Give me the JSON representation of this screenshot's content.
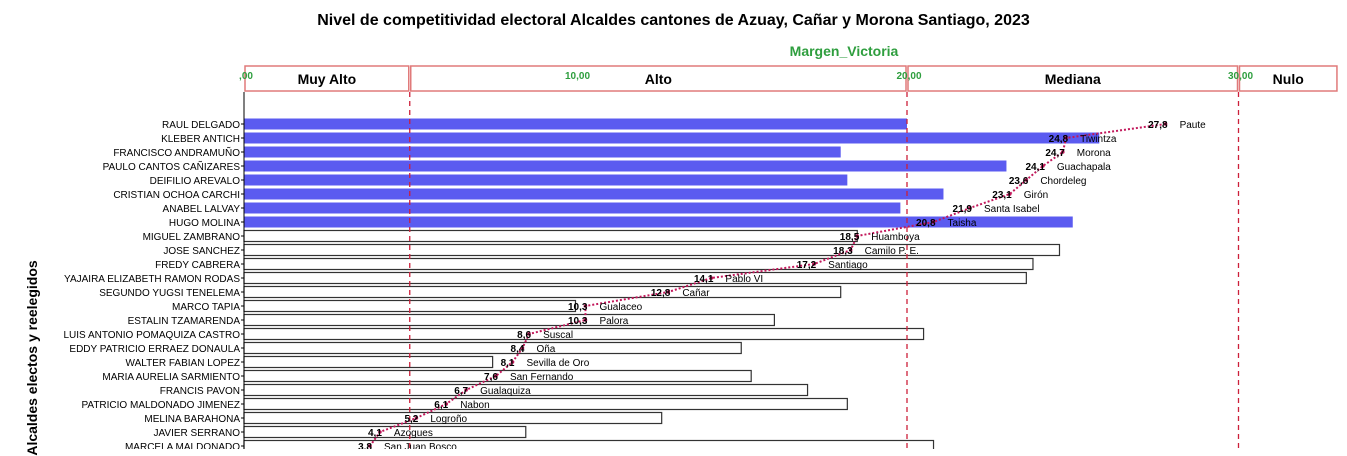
{
  "chart_data": {
    "type": "bar",
    "title": "Nivel de competitividad electoral Alcaldes cantones de Azuay, Cañar y Morona Santiago, 2023",
    "xlabel": "Margen_Victoria",
    "ylabel": "Alcaldes electos y reelegidos",
    "xlim": [
      0,
      33
    ],
    "x_ticks": [
      ",00",
      "10,00",
      "20,00",
      "30,00"
    ],
    "bands": [
      {
        "label": "Muy Alto"
      },
      {
        "label": "Alto"
      },
      {
        "label": "Mediana"
      },
      {
        "label": "Nulo"
      }
    ],
    "band_limits": [
      5,
      20,
      30
    ],
    "categories": [
      "RAUL DELGADO",
      "KLEBER ANTICH",
      "FRANCISCO ANDRAMUÑO",
      "PAULO CANTOS CAÑIZARES",
      "DEIFILIO AREVALO",
      "CRISTIAN OCHOA CARCHI",
      "ANABEL LALVAY",
      "HUGO MOLINA",
      "MIGUEL ZAMBRANO",
      "JOSE SANCHEZ",
      "FREDY CABRERA",
      "YAJAIRA ELIZABETH RAMON RODAS",
      "SEGUNDO YUGSI TENELEMA",
      "MARCO TAPIA",
      "ESTALIN TZAMARENDA",
      "LUIS ANTONIO POMAQUIZA CASTRO",
      "EDDY PATRICIO ERRAEZ DONAULA",
      "WALTER FABIAN LOPEZ",
      "MARIA AURELIA SARMIENTO",
      "FRANCIS PAVON",
      "PATRICIO MALDONADO JIMENEZ",
      "MELINA BARAHONA",
      "JAVIER SERRANO",
      "MARCELA MALDONADO"
    ],
    "bar_values": [
      20.0,
      25.8,
      18.0,
      23.0,
      18.2,
      21.1,
      19.8,
      25.0,
      18.5,
      24.6,
      23.8,
      23.6,
      18.0,
      10.0,
      16.0,
      20.5,
      15.0,
      7.5,
      15.3,
      17.0,
      18.2,
      12.6,
      8.5,
      20.8
    ],
    "bar_colors": [
      "#5b5bf0",
      "#5b5bf0",
      "#5b5bf0",
      "#5b5bf0",
      "#5b5bf0",
      "#5b5bf0",
      "#5b5bf0",
      "#5b5bf0",
      "#ffffff",
      "#ffffff",
      "#ffffff",
      "#ffffff",
      "#ffffff",
      "#ffffff",
      "#ffffff",
      "#ffffff",
      "#ffffff",
      "#ffffff",
      "#ffffff",
      "#ffffff",
      "#ffffff",
      "#ffffff",
      "#ffffff",
      "#ffffff"
    ],
    "points": [
      {
        "value": 27.8,
        "label": "27,8",
        "canton": "Paute"
      },
      {
        "value": 24.8,
        "label": "24,8",
        "canton": "Tiwintza"
      },
      {
        "value": 24.7,
        "label": "24,7",
        "canton": "Morona"
      },
      {
        "value": 24.1,
        "label": "24,1",
        "canton": "Guachapala"
      },
      {
        "value": 23.6,
        "label": "23,6",
        "canton": "Chordeleg"
      },
      {
        "value": 23.1,
        "label": "23,1",
        "canton": "Girón"
      },
      {
        "value": 21.9,
        "label": "21,9",
        "canton": "Santa Isabel"
      },
      {
        "value": 20.8,
        "label": "20,8",
        "canton": "Taisha"
      },
      {
        "value": 18.5,
        "label": "18,5",
        "canton": "Huamboya"
      },
      {
        "value": 18.3,
        "label": "18,3",
        "canton": "Camilo P. E."
      },
      {
        "value": 17.2,
        "label": "17,2",
        "canton": "Santiago"
      },
      {
        "value": 14.1,
        "label": "14,1",
        "canton": "Pablo VI"
      },
      {
        "value": 12.8,
        "label": "12,8",
        "canton": "Cañar"
      },
      {
        "value": 10.3,
        "label": "10,3",
        "canton": "Gualaceo"
      },
      {
        "value": 10.3,
        "label": "10,3",
        "canton": "Palora"
      },
      {
        "value": 8.6,
        "label": "8,6",
        "canton": "Suscal"
      },
      {
        "value": 8.4,
        "label": "8,4",
        "canton": "Oña"
      },
      {
        "value": 8.1,
        "label": "8,1",
        "canton": "Sevilla de Oro"
      },
      {
        "value": 7.6,
        "label": "7,6",
        "canton": "San Fernando"
      },
      {
        "value": 6.7,
        "label": "6,7",
        "canton": "Gualaquiza"
      },
      {
        "value": 6.1,
        "label": "6,1",
        "canton": "Nabon"
      },
      {
        "value": 5.2,
        "label": "5,2",
        "canton": "Logroño"
      },
      {
        "value": 4.1,
        "label": "4,1",
        "canton": "Azogues"
      },
      {
        "value": 3.8,
        "label": "3,8",
        "canton": "San Juan Bosco"
      }
    ],
    "colors": {
      "bar_high": "#5b5bf0",
      "bar_outline": "#333333",
      "trend_line": "#c2185b",
      "reference_line": "#cc1f3a",
      "band_border": "#e07a7a",
      "tick_label": "#2e9e3e"
    },
    "grid": false,
    "legend": "none"
  }
}
